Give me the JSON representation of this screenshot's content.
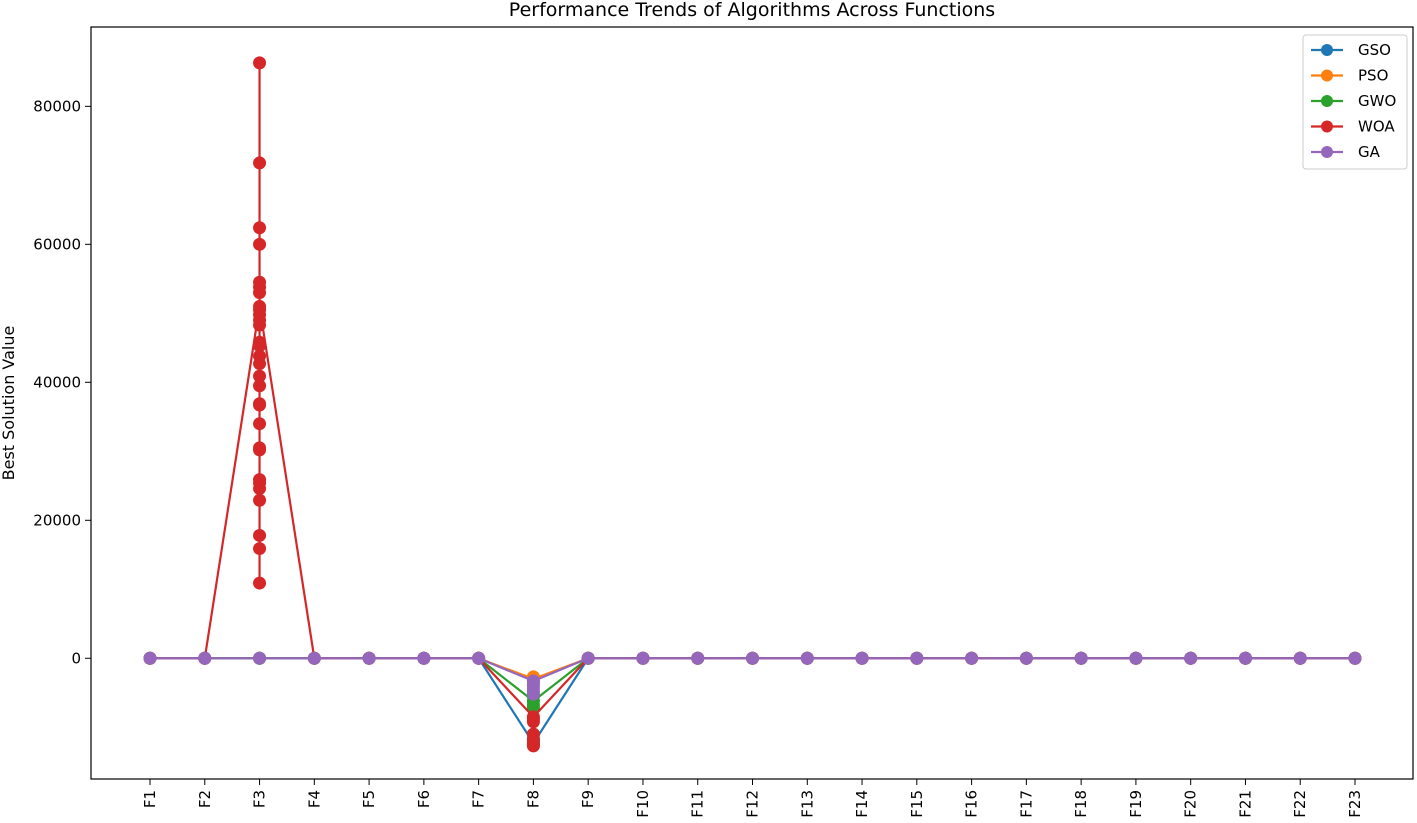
{
  "chart_data": {
    "type": "line",
    "title": "Performance Trends of Algorithms Across Functions",
    "xlabel": "",
    "ylabel": "Best Solution Value",
    "categories": [
      "F1",
      "F2",
      "F3",
      "F4",
      "F5",
      "F6",
      "F7",
      "F8",
      "F9",
      "F10",
      "F11",
      "F12",
      "F13",
      "F14",
      "F15",
      "F16",
      "F17",
      "F18",
      "F19",
      "F20",
      "F21",
      "F22",
      "F23"
    ],
    "yticks": [
      0,
      20000,
      40000,
      60000,
      80000
    ],
    "ylim": [
      -17500,
      91500
    ],
    "legend_position": "top-right",
    "grid": false,
    "series": [
      {
        "name": "GSO",
        "color": "#1f77b4",
        "values": [
          0,
          0,
          0,
          0,
          0,
          0,
          0,
          -12300,
          0,
          0,
          0,
          0,
          0,
          0,
          0,
          0,
          0,
          0,
          0,
          0,
          0,
          0,
          0
        ],
        "extra_points": {
          "F8": [
            -12500,
            -12000,
            -11600,
            -11000
          ]
        }
      },
      {
        "name": "PSO",
        "color": "#ff7f0e",
        "values": [
          0,
          0,
          0,
          0,
          0,
          0,
          0,
          -3000,
          0,
          0,
          0,
          0,
          0,
          0,
          0,
          0,
          0,
          0,
          0,
          0,
          0,
          0,
          0
        ],
        "extra_points": {
          "F8": [
            -2700,
            -3300,
            -3600
          ]
        }
      },
      {
        "name": "GWO",
        "color": "#2ca02c",
        "values": [
          0,
          0,
          0,
          0,
          0,
          0,
          0,
          -6200,
          0,
          0,
          0,
          0,
          0,
          0,
          0,
          0,
          0,
          0,
          0,
          0,
          0,
          0,
          0
        ],
        "extra_points": {
          "F8": [
            -5500,
            -6800,
            -7200
          ]
        }
      },
      {
        "name": "WOA",
        "color": "#d62728",
        "values": [
          0,
          0,
          51000,
          0,
          0,
          0,
          0,
          -8500,
          0,
          0,
          0,
          0,
          0,
          0,
          0,
          0,
          0,
          0,
          0,
          0,
          0,
          0,
          0
        ],
        "extra_points": {
          "F3": [
            86300,
            71800,
            62400,
            60000,
            54500,
            53800,
            53000,
            50500,
            49800,
            49000,
            48300,
            45800,
            45300,
            43800,
            42700,
            40900,
            39500,
            36900,
            36700,
            34000,
            30500,
            30200,
            25900,
            25400,
            24600,
            22900,
            17800,
            15900,
            10900
          ],
          "F8": [
            -8800,
            -9200,
            -11000,
            -11800,
            -12400,
            -12700
          ]
        }
      },
      {
        "name": "GA",
        "color": "#9467bd",
        "values": [
          0,
          0,
          0,
          0,
          0,
          0,
          0,
          -3300,
          0,
          0,
          0,
          0,
          0,
          0,
          0,
          0,
          0,
          0,
          0,
          0,
          0,
          0,
          0
        ],
        "extra_points": {
          "F8": [
            -3800,
            -4300,
            -4800,
            -5200
          ]
        }
      }
    ]
  }
}
